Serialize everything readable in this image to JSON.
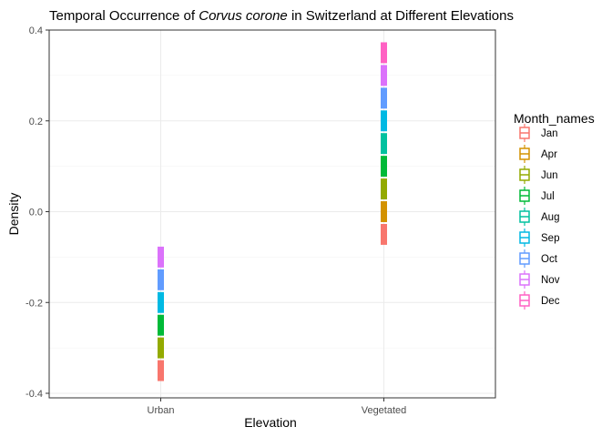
{
  "chart_data": {
    "type": "boxplot",
    "title": {
      "prefix": "Temporal Occurrence of ",
      "italic": "Corvus corone",
      "suffix": " in Switzerland at Different Elevations"
    },
    "xlabel": "Elevation",
    "ylabel": "Density",
    "categories": [
      "Urban",
      "Vegetated"
    ],
    "ylim": [
      -0.41,
      0.4
    ],
    "yticks": [
      -0.4,
      -0.2,
      0.0,
      0.2,
      0.4
    ],
    "ytick_labels": [
      "-0.4",
      "-0.2",
      "0.0",
      "0.2",
      "0.4"
    ],
    "grid": true,
    "legend_position": "right",
    "legend_title": "Month_names",
    "series": [
      {
        "name": "Jan",
        "color": "#F8766D",
        "values": {
          "Urban": [
            -0.372,
            -0.328
          ],
          "Vegetated": [
            -0.072,
            -0.028
          ]
        }
      },
      {
        "name": "Apr",
        "color": "#D39200",
        "values": {
          "Urban": null,
          "Vegetated": [
            -0.022,
            0.022
          ]
        }
      },
      {
        "name": "Jun",
        "color": "#93AA00",
        "values": {
          "Urban": [
            -0.322,
            -0.278
          ],
          "Vegetated": [
            0.028,
            0.072
          ]
        }
      },
      {
        "name": "Jul",
        "color": "#00BA38",
        "values": {
          "Urban": [
            -0.272,
            -0.228
          ],
          "Vegetated": [
            0.078,
            0.122
          ]
        }
      },
      {
        "name": "Aug",
        "color": "#00C19F",
        "values": {
          "Urban": null,
          "Vegetated": [
            0.128,
            0.172
          ]
        }
      },
      {
        "name": "Sep",
        "color": "#00B9E3",
        "values": {
          "Urban": [
            -0.222,
            -0.178
          ],
          "Vegetated": [
            0.178,
            0.222
          ]
        }
      },
      {
        "name": "Oct",
        "color": "#619CFF",
        "values": {
          "Urban": [
            -0.172,
            -0.128
          ],
          "Vegetated": [
            0.228,
            0.272
          ]
        }
      },
      {
        "name": "Nov",
        "color": "#DB72FB",
        "values": {
          "Urban": [
            -0.122,
            -0.078
          ],
          "Vegetated": [
            0.278,
            0.322
          ]
        }
      },
      {
        "name": "Dec",
        "color": "#FF61C3",
        "values": {
          "Urban": null,
          "Vegetated": [
            0.328,
            0.372
          ]
        }
      }
    ]
  }
}
